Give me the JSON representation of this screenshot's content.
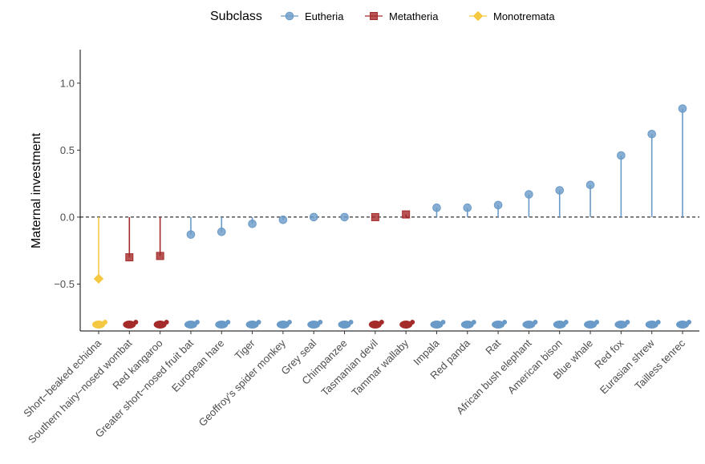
{
  "chart_data": {
    "type": "lollipop",
    "ylabel": "Maternal investment",
    "xlabel": "",
    "ylim": [
      -0.85,
      1.25
    ],
    "yticks": [
      -0.5,
      0.0,
      0.5,
      1.0
    ],
    "ytick_labels": [
      "−0.5",
      "0.0",
      "0.5",
      "1.0"
    ],
    "reference_line": 0,
    "grid": false,
    "legend": {
      "title": "Subclass",
      "position": "top",
      "entries": [
        {
          "name": "Eutheria",
          "color": "#6a9bc8",
          "marker": "circle"
        },
        {
          "name": "Metatheria",
          "color": "#a52a2a",
          "marker": "square"
        },
        {
          "name": "Monotremata",
          "color": "#f5c842",
          "marker": "diamond"
        }
      ]
    },
    "points": [
      {
        "species": "Short−beaked echidna",
        "value": -0.46,
        "subclass": "Monotremata"
      },
      {
        "species": "Southern hairy−nosed wombat",
        "value": -0.3,
        "subclass": "Metatheria"
      },
      {
        "species": "Red kangaroo",
        "value": -0.29,
        "subclass": "Metatheria"
      },
      {
        "species": "Greater short−nosed fruit bat",
        "value": -0.13,
        "subclass": "Eutheria"
      },
      {
        "species": "European hare",
        "value": -0.11,
        "subclass": "Eutheria"
      },
      {
        "species": "Tiger",
        "value": -0.05,
        "subclass": "Eutheria"
      },
      {
        "species": "Geoffroy's spider monkey",
        "value": -0.02,
        "subclass": "Eutheria"
      },
      {
        "species": "Grey seal",
        "value": 0.0,
        "subclass": "Eutheria"
      },
      {
        "species": "Chimpanzee",
        "value": 0.0,
        "subclass": "Eutheria"
      },
      {
        "species": "Tasmanian devil",
        "value": 0.0,
        "subclass": "Metatheria"
      },
      {
        "species": "Tammar wallaby",
        "value": 0.02,
        "subclass": "Metatheria"
      },
      {
        "species": "Impala",
        "value": 0.07,
        "subclass": "Eutheria"
      },
      {
        "species": "Red panda",
        "value": 0.07,
        "subclass": "Eutheria"
      },
      {
        "species": "Rat",
        "value": 0.09,
        "subclass": "Eutheria"
      },
      {
        "species": "African bush elephant",
        "value": 0.17,
        "subclass": "Eutheria"
      },
      {
        "species": "American bison",
        "value": 0.2,
        "subclass": "Eutheria"
      },
      {
        "species": "Blue whale",
        "value": 0.24,
        "subclass": "Eutheria"
      },
      {
        "species": "Red fox",
        "value": 0.46,
        "subclass": "Eutheria"
      },
      {
        "species": "Eurasian shrew",
        "value": 0.62,
        "subclass": "Eutheria"
      },
      {
        "species": "Tailless tenrec",
        "value": 0.81,
        "subclass": "Eutheria"
      }
    ]
  }
}
